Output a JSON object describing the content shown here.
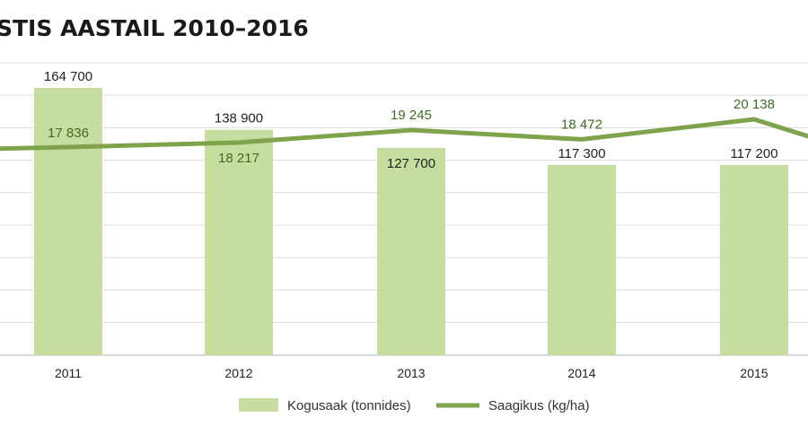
{
  "chart_data": {
    "type": "bar",
    "title": "STIS AASTAIL 2010–2016",
    "categories": [
      "2011",
      "2012",
      "2013",
      "2014",
      "2015"
    ],
    "series": [
      {
        "name": "Kogusaak (tonnides)",
        "type": "bar",
        "values": [
          164700,
          138900,
          127700,
          117300,
          117200
        ],
        "labels": [
          "164 700",
          "138 900",
          "127 700",
          "117 300",
          "117 200"
        ],
        "color": "#c5dd9f"
      },
      {
        "name": "Saagikus (kg/ha)",
        "type": "line",
        "values": [
          17836,
          18217,
          19245,
          18472,
          20138
        ],
        "labels": [
          "17 836",
          "18 217",
          "19 245",
          "18 472",
          "20 138"
        ],
        "color": "#7fa34b",
        "label_color": "#3f6b22"
      }
    ],
    "bar_ylim": [
      0,
      180000
    ],
    "line_ylim": [
      0,
      28000
    ],
    "grid": true,
    "legend_position": "bottom"
  }
}
